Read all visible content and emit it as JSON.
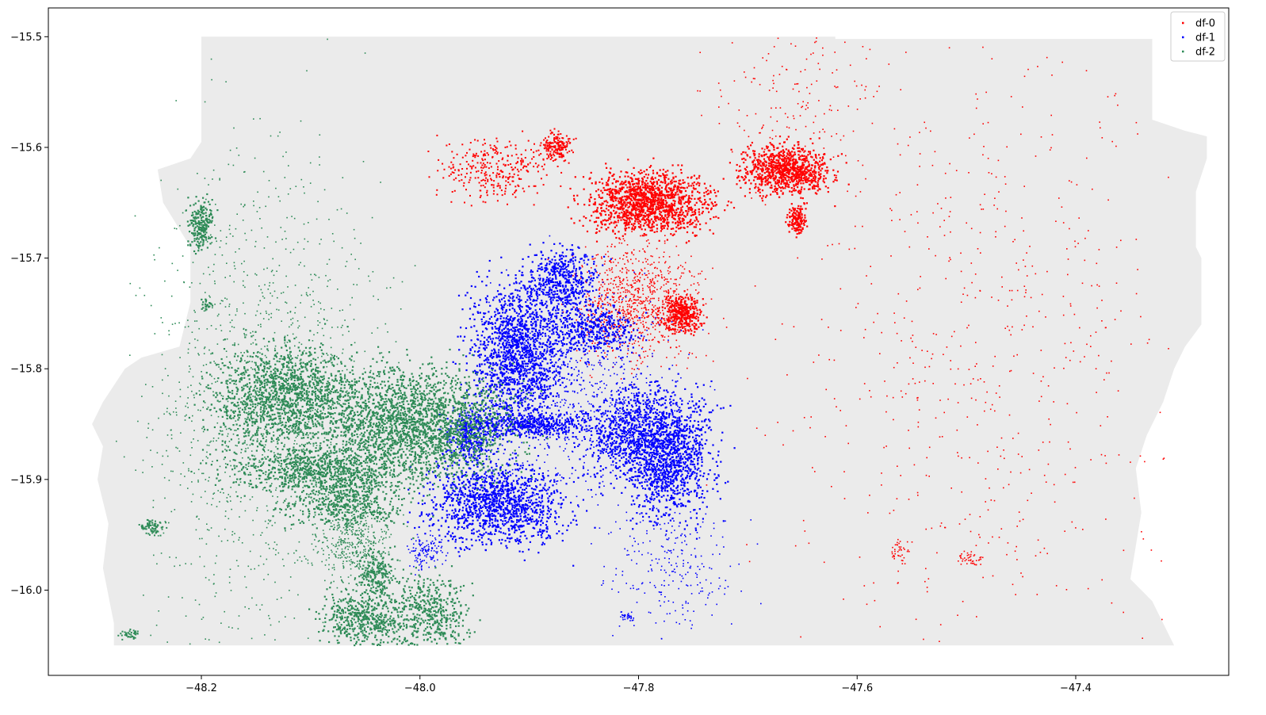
{
  "chart_data": {
    "type": "scatter",
    "title": "",
    "xlabel": "",
    "ylabel": "",
    "xlim": [
      -48.34,
      -47.26
    ],
    "ylim": [
      -16.077,
      -15.474
    ],
    "xticks": [
      -48.2,
      -48.0,
      -47.8,
      -47.6,
      -47.4
    ],
    "xtick_labels": [
      "−48.2",
      "−48.0",
      "−47.8",
      "−47.6",
      "−47.4"
    ],
    "yticks": [
      -15.5,
      -15.6,
      -15.7,
      -15.8,
      -15.9,
      -16.0
    ],
    "ytick_labels": [
      "−15.5",
      "−15.6",
      "−15.7",
      "−15.8",
      "−15.9",
      "−16.0"
    ],
    "grid": false,
    "legend_position": "upper right",
    "background_region": {
      "color": "#ebebeb",
      "outline": [
        [
          -48.2,
          -15.5
        ],
        [
          -47.62,
          -15.5
        ],
        [
          -47.62,
          -15.502
        ],
        [
          -47.33,
          -15.502
        ],
        [
          -47.33,
          -15.575
        ],
        [
          -47.3,
          -15.585
        ],
        [
          -47.28,
          -15.59
        ],
        [
          -47.28,
          -15.61
        ],
        [
          -47.29,
          -15.64
        ],
        [
          -47.29,
          -15.69
        ],
        [
          -47.285,
          -15.7
        ],
        [
          -47.285,
          -15.76
        ],
        [
          -47.3,
          -15.78
        ],
        [
          -47.31,
          -15.8
        ],
        [
          -47.32,
          -15.83
        ],
        [
          -47.335,
          -15.86
        ],
        [
          -47.345,
          -15.89
        ],
        [
          -47.34,
          -15.93
        ],
        [
          -47.345,
          -15.96
        ],
        [
          -47.35,
          -15.99
        ],
        [
          -47.33,
          -16.01
        ],
        [
          -47.32,
          -16.03
        ],
        [
          -47.31,
          -16.05
        ],
        [
          -48.28,
          -16.05
        ],
        [
          -48.28,
          -16.03
        ],
        [
          -48.29,
          -15.98
        ],
        [
          -48.285,
          -15.94
        ],
        [
          -48.295,
          -15.9
        ],
        [
          -48.29,
          -15.87
        ],
        [
          -48.3,
          -15.85
        ],
        [
          -48.29,
          -15.83
        ],
        [
          -48.27,
          -15.8
        ],
        [
          -48.255,
          -15.79
        ],
        [
          -48.22,
          -15.78
        ],
        [
          -48.21,
          -15.74
        ],
        [
          -48.21,
          -15.69
        ],
        [
          -48.235,
          -15.65
        ],
        [
          -48.24,
          -15.62
        ],
        [
          -48.21,
          -15.61
        ],
        [
          -48.2,
          -15.595
        ]
      ]
    },
    "series": [
      {
        "name": "df-0",
        "color": "#ff0000",
        "clusters": [
          {
            "cx": -47.79,
            "cy": -15.65,
            "rx": 0.05,
            "ry": 0.025,
            "n": 1400,
            "w": 2.2
          },
          {
            "cx": -47.665,
            "cy": -15.62,
            "rx": 0.035,
            "ry": 0.02,
            "n": 900,
            "w": 2.2
          },
          {
            "cx": -47.76,
            "cy": -15.75,
            "rx": 0.015,
            "ry": 0.015,
            "n": 350,
            "w": 2.2
          },
          {
            "cx": -47.655,
            "cy": -15.665,
            "rx": 0.008,
            "ry": 0.012,
            "n": 150,
            "w": 2.2
          },
          {
            "cx": -47.875,
            "cy": -15.6,
            "rx": 0.012,
            "ry": 0.012,
            "n": 180,
            "w": 2.0
          },
          {
            "cx": -47.93,
            "cy": -15.62,
            "rx": 0.045,
            "ry": 0.025,
            "n": 300,
            "w": 2.0
          },
          {
            "cx": -47.8,
            "cy": -15.74,
            "rx": 0.05,
            "ry": 0.05,
            "n": 900,
            "w": 1.6
          },
          {
            "cx": -47.48,
            "cy": -15.78,
            "rx": 0.17,
            "ry": 0.26,
            "n": 650,
            "w": 1.6
          },
          {
            "cx": -47.66,
            "cy": -15.56,
            "rx": 0.07,
            "ry": 0.06,
            "n": 150,
            "w": 1.6
          },
          {
            "cx": -47.56,
            "cy": -15.965,
            "rx": 0.008,
            "ry": 0.01,
            "n": 40,
            "w": 1.6
          },
          {
            "cx": -47.497,
            "cy": -15.972,
            "rx": 0.01,
            "ry": 0.006,
            "n": 40,
            "w": 1.6
          }
        ]
      },
      {
        "name": "df-1",
        "color": "#0000ff",
        "clusters": [
          {
            "cx": -47.91,
            "cy": -15.785,
            "rx": 0.04,
            "ry": 0.055,
            "n": 1500,
            "w": 2.2
          },
          {
            "cx": -47.93,
            "cy": -15.92,
            "rx": 0.055,
            "ry": 0.035,
            "n": 1300,
            "w": 2.2
          },
          {
            "cx": -47.79,
            "cy": -15.86,
            "rx": 0.05,
            "ry": 0.04,
            "n": 1300,
            "w": 2.2
          },
          {
            "cx": -47.77,
            "cy": -15.895,
            "rx": 0.035,
            "ry": 0.04,
            "n": 600,
            "w": 2.2
          },
          {
            "cx": -47.87,
            "cy": -15.72,
            "rx": 0.03,
            "ry": 0.025,
            "n": 500,
            "w": 2.2
          },
          {
            "cx": -47.84,
            "cy": -15.765,
            "rx": 0.035,
            "ry": 0.02,
            "n": 400,
            "w": 2.2
          },
          {
            "cx": -47.9,
            "cy": -15.85,
            "rx": 0.05,
            "ry": 0.01,
            "n": 500,
            "w": 2.2
          },
          {
            "cx": -47.955,
            "cy": -15.86,
            "rx": 0.02,
            "ry": 0.02,
            "n": 300,
            "w": 2.2
          },
          {
            "cx": -47.85,
            "cy": -15.82,
            "rx": 0.08,
            "ry": 0.09,
            "n": 600,
            "w": 1.6
          },
          {
            "cx": -47.77,
            "cy": -15.975,
            "rx": 0.05,
            "ry": 0.055,
            "n": 250,
            "w": 1.6
          },
          {
            "cx": -47.995,
            "cy": -15.965,
            "rx": 0.015,
            "ry": 0.015,
            "n": 120,
            "w": 1.6
          },
          {
            "cx": -47.81,
            "cy": -16.024,
            "rx": 0.006,
            "ry": 0.004,
            "n": 30,
            "w": 1.6
          }
        ]
      },
      {
        "name": "df-2",
        "color": "#2e8b57",
        "clusters": [
          {
            "cx": -48.0,
            "cy": -15.85,
            "rx": 0.075,
            "ry": 0.045,
            "n": 2200,
            "w": 2.2
          },
          {
            "cx": -48.12,
            "cy": -15.825,
            "rx": 0.06,
            "ry": 0.04,
            "n": 1500,
            "w": 2.2
          },
          {
            "cx": -48.09,
            "cy": -15.89,
            "rx": 0.08,
            "ry": 0.018,
            "n": 800,
            "w": 2.2
          },
          {
            "cx": -48.07,
            "cy": -15.92,
            "rx": 0.05,
            "ry": 0.02,
            "n": 500,
            "w": 2.2
          },
          {
            "cx": -48.05,
            "cy": -16.025,
            "rx": 0.035,
            "ry": 0.025,
            "n": 500,
            "w": 2.2
          },
          {
            "cx": -47.99,
            "cy": -16.02,
            "rx": 0.03,
            "ry": 0.03,
            "n": 450,
            "w": 2.2
          },
          {
            "cx": -48.04,
            "cy": -15.985,
            "rx": 0.015,
            "ry": 0.02,
            "n": 200,
            "w": 2.2
          },
          {
            "cx": -48.2,
            "cy": -15.67,
            "rx": 0.01,
            "ry": 0.02,
            "n": 220,
            "w": 2.2
          },
          {
            "cx": -48.195,
            "cy": -15.742,
            "rx": 0.005,
            "ry": 0.005,
            "n": 25,
            "w": 2.2
          },
          {
            "cx": -48.245,
            "cy": -15.943,
            "rx": 0.01,
            "ry": 0.006,
            "n": 80,
            "w": 2.0
          },
          {
            "cx": -48.265,
            "cy": -16.04,
            "rx": 0.008,
            "ry": 0.004,
            "n": 40,
            "w": 2.0
          },
          {
            "cx": -48.14,
            "cy": -15.83,
            "rx": 0.1,
            "ry": 0.2,
            "n": 1300,
            "w": 1.6
          },
          {
            "cx": -48.06,
            "cy": -15.955,
            "rx": 0.03,
            "ry": 0.03,
            "n": 400,
            "w": 1.6
          }
        ]
      }
    ]
  }
}
